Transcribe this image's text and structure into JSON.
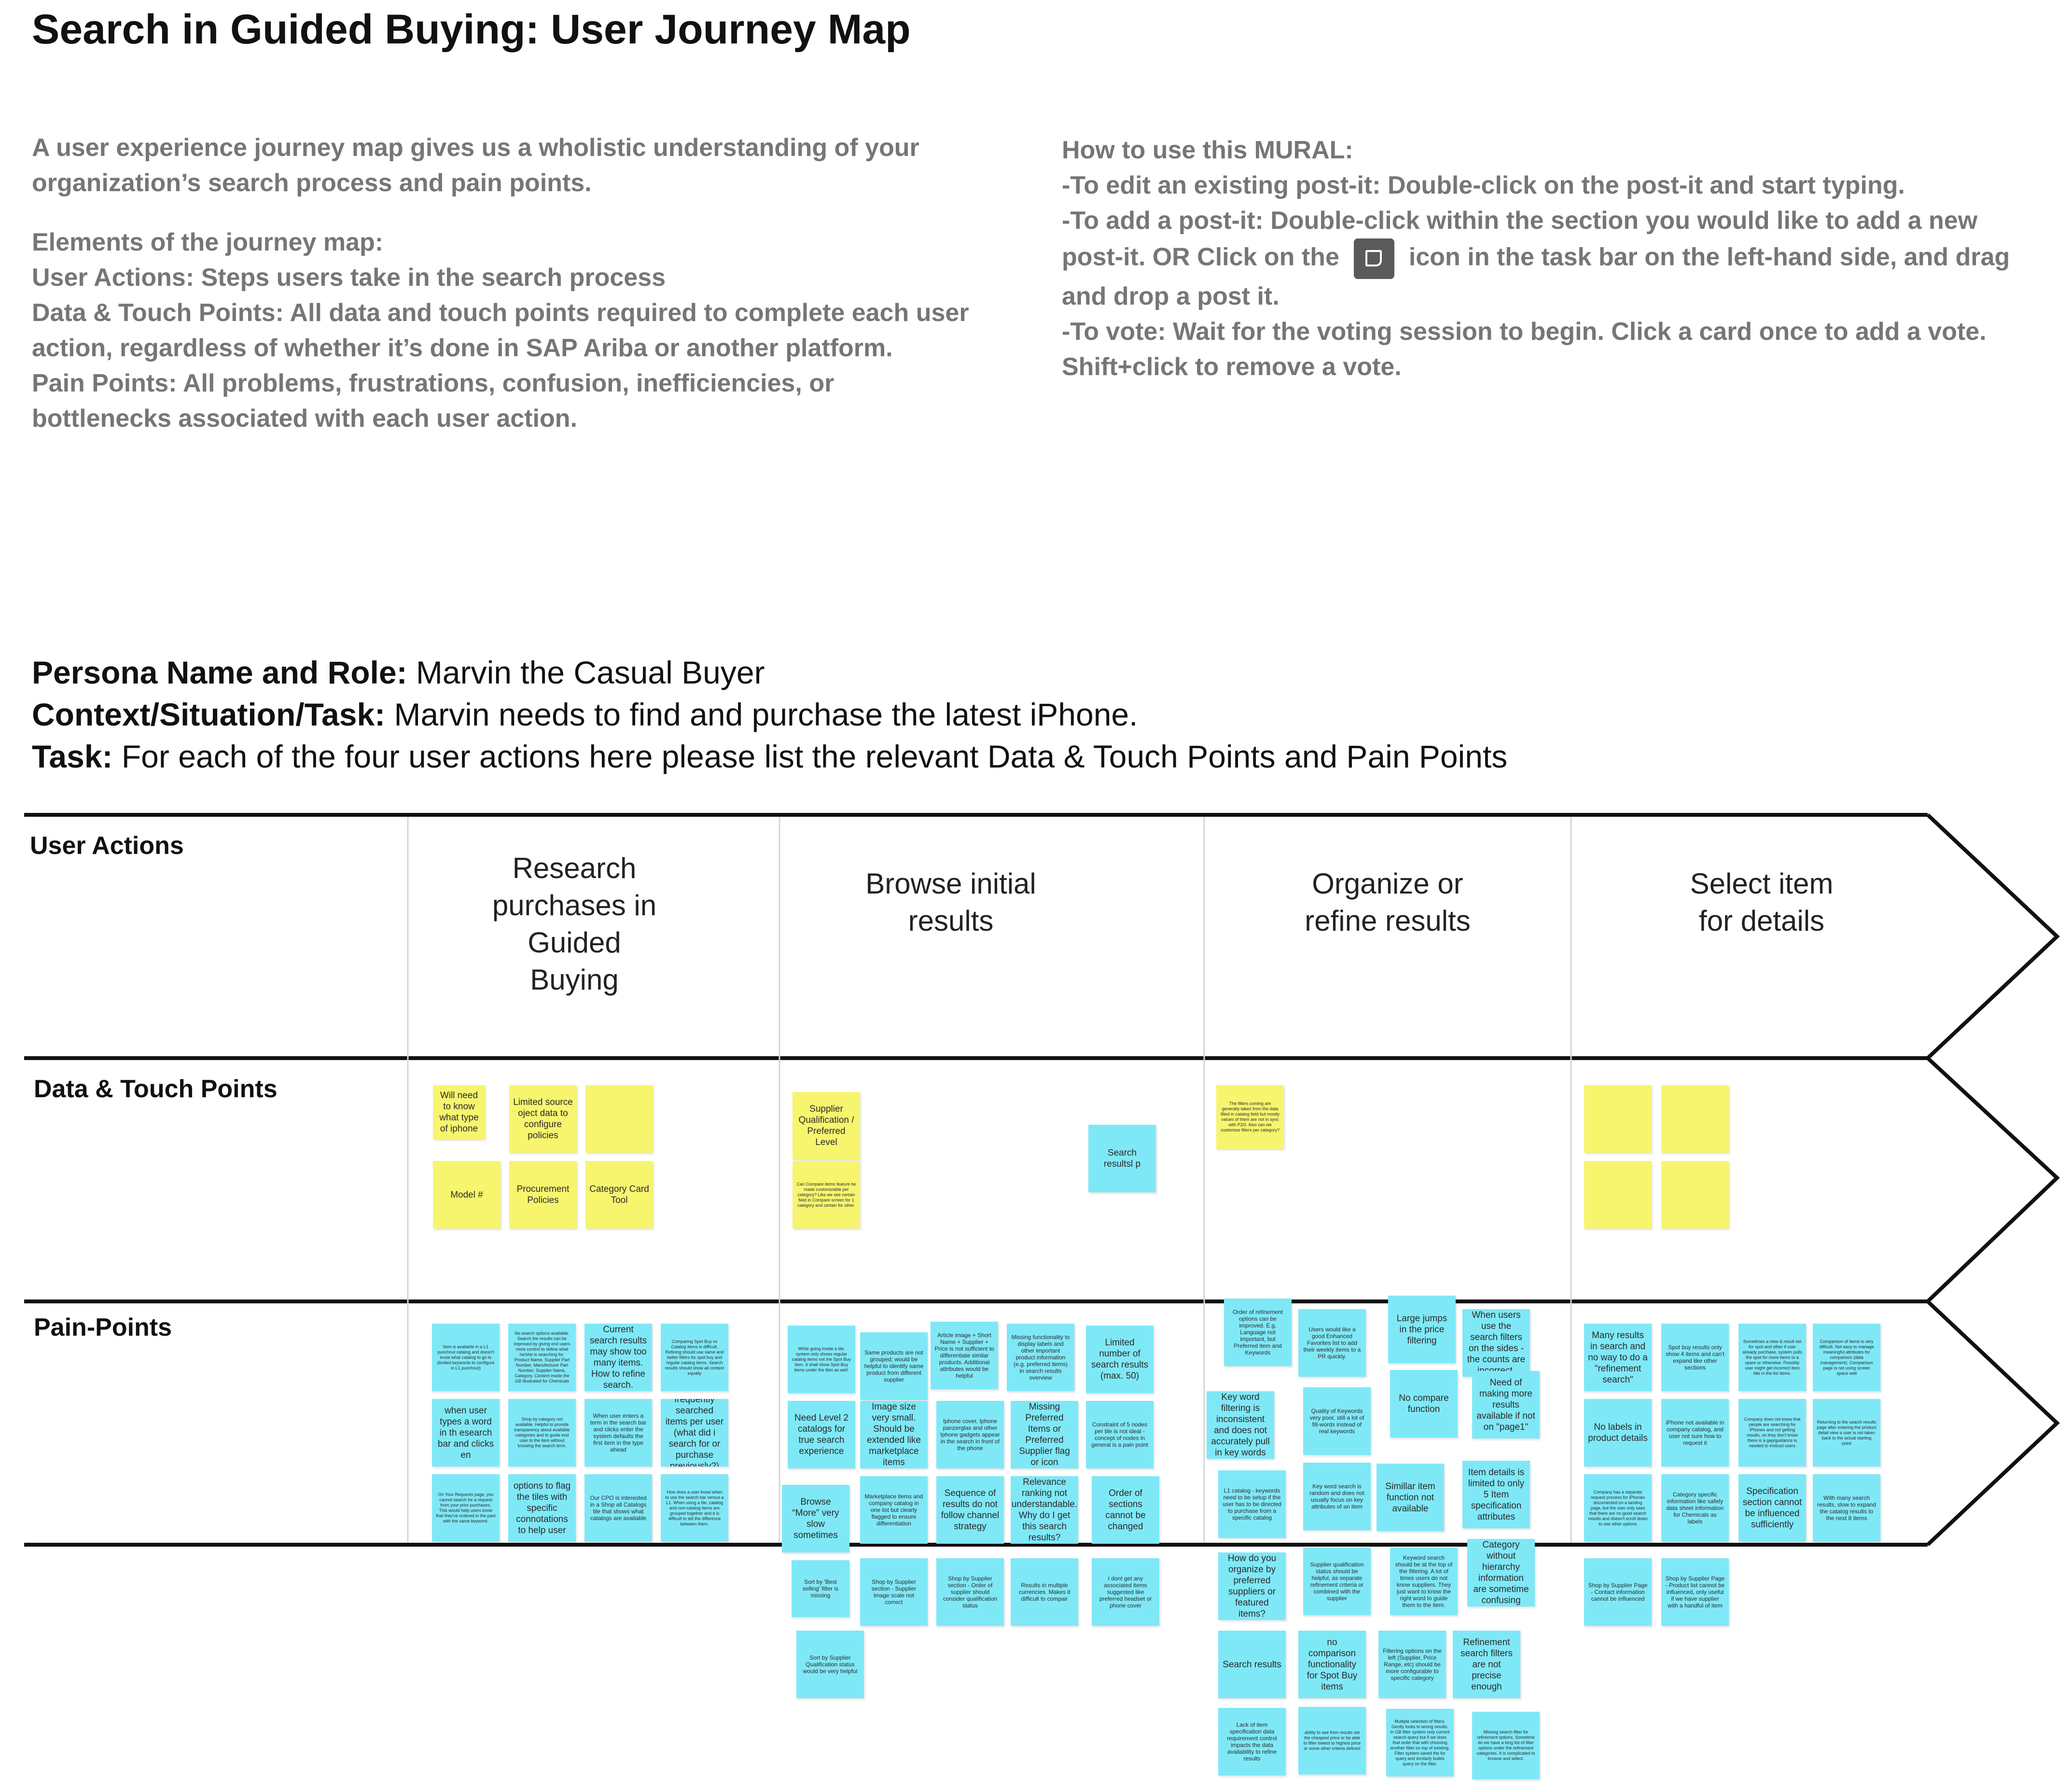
{
  "title": "Search in Guided Buying: User Journey Map",
  "intro": {
    "left": [
      "A user experience journey map gives us a wholistic understanding of your organization’s search process and pain points.",
      "Elements of the journey map:",
      "User Actions: Steps users take in the search process",
      "Data & Touch Points: All data and touch points required to complete each user action, regardless of whether it’s done in SAP Ariba or another platform.",
      "Pain Points: All problems, frustrations, confusion, inefficiencies, or bottlenecks  associated with each user action."
    ],
    "right": {
      "heading": "How to use this MURAL:",
      "edit": "-To edit an existing post-it: Double-click on the post-it and start typing.",
      "add_before_icon": "-To add a post-it: Double-click within the section you would like to add a new post-it. OR Click on the",
      "add_after_icon": "icon in the task bar on the left-hand side, and drag and drop a post it.",
      "vote": "-To vote: Wait for the voting session to begin. Click a card once to add a vote. Shift+click to remove a vote."
    },
    "icon": "sticky-note-icon"
  },
  "persona": {
    "name_label": "Persona Name and Role:",
    "name_value": " Marvin the Casual Buyer",
    "context_label": "Context/Situation/Task:",
    "context_value": " Marvin needs to find and purchase the latest iPhone.",
    "task_label": "Task:",
    "task_value": "  For each of the four user actions here please list the relevant Data & Touch Points and Pain Points"
  },
  "rows": {
    "user_actions": "User Actions",
    "data_touch": "Data & Touch Points",
    "pain_points": "Pain-Points"
  },
  "actions": [
    "Research purchases in Guided Buying",
    "Browse initial results",
    "Organize or refine results",
    "Select item for details"
  ],
  "touch_notes": [
    {
      "t": "Will need to know what type of iphone",
      "c": "y"
    },
    {
      "t": "Limited source oject data to configure policies",
      "c": "y"
    },
    {
      "t": "",
      "c": "y"
    },
    {
      "t": "Model #",
      "c": "y"
    },
    {
      "t": "Procurement Policies",
      "c": "y"
    },
    {
      "t": "Category Card Tool",
      "c": "y"
    },
    {
      "t": "Supplier Qualification / Preferred Level",
      "c": "y"
    },
    {
      "t": "Can Compare items feature be made customizable per category? Like we see certain field in Compare screen for 1 category and certain for other.",
      "c": "y"
    },
    {
      "t": "Search resultsl p",
      "c": "b"
    },
    {
      "t": "The filters coming are generally taken from the data filled in catalog field but mostly values of them are not in sync with P2O. Also can we customize filters per category?",
      "c": "y"
    },
    {
      "t": "",
      "c": "y"
    },
    {
      "t": "",
      "c": "y"
    },
    {
      "t": "",
      "c": "y"
    },
    {
      "t": "",
      "c": "y"
    }
  ],
  "pain_notes": [
    {
      "t": "Item is available in a L1 punchout catalog and doesn't know what catalog to go to (limited keywords to configure in L1 punchout)"
    },
    {
      "t": "No search options available. Search the results can be improved by giving end users more control to define what he/she is searching for. Product Name, Supplier Part Number, Manufacturer Part Number, Supplier Name, Category. Content inside the GB Illustrated for Chemicals"
    },
    {
      "t": "Current search results may show too many items. How to refine search."
    },
    {
      "t": "Comparing Spot Buy vs Catalog items is difficult. Refining should use same and better filters for spot buy and regular catalog items. Search results should show all content equally"
    },
    {
      "t": "when user types a word in th esearch bar and clicks en"
    },
    {
      "t": "Shop by category not available. Helpful to provide transparency about available categories and to guide end user to the item without knowing the search term."
    },
    {
      "t": "When user enters a term in the search bar and clicks enter the system defaults the first item in the type ahead"
    },
    {
      "t": "frequently searched items per user (what did i search for or purchase previously?)"
    },
    {
      "t": "On Your Requests page, you cannot search for a request from your prior purchases. This would help users know that they've ordered in the past with the same keyword."
    },
    {
      "t": "options to flag the tiles with specific connotations to help user"
    },
    {
      "t": "Our CPO is interested in a Shop all Catalogs tile that shows what catalogs are available"
    },
    {
      "t": "How does a user know when to use the search bar versus a L1. When using a tile, catalog and non-catalog items are grouped together and it is difficult to tell the difference between them."
    },
    {
      "t": "While going inside a tile, system only shows regular catalog items not the Spot Buy item. It shall show Spot Buy items under the tiles as well."
    },
    {
      "t": "Same products are not grouped; would be helpful to identify same product from different supplier"
    },
    {
      "t": "Article image + Short Name + Supplier + Price is not sufficient to differentiate similar products. Additional attributes would be helpful"
    },
    {
      "t": "Missing functionality to display labels and other important product information (e.g. preferred items) in search results overview"
    },
    {
      "t": "Limited number of search results (max. 50)"
    },
    {
      "t": "Need Level 2 catalogs for true search experience"
    },
    {
      "t": "Image size very small. Should be extended like marketplace items"
    },
    {
      "t": "Iphone cover, Iphone panzerglas and other Iphone gadgets appear in the search in front of the phone"
    },
    {
      "t": "Missing Preferred Items or Preferred Supplier flag or icon"
    },
    {
      "t": "Constraint of 5 nodes per tile is not ideal - concept of nodes in general is a pain point"
    },
    {
      "t": "Browse “More” very slow sometimes"
    },
    {
      "t": "Marketplace items and company catalog in one list but clearly flagged to ensure differentiation"
    },
    {
      "t": "Sequence of results do not follow channel strategy"
    },
    {
      "t": "Relevance ranking not understandable. Why do I get this search results?"
    },
    {
      "t": "Order of sections cannot be changed"
    },
    {
      "t": "Sort by 'Best selling' filter is missing"
    },
    {
      "t": "Shop by Supplier section - Supplier image scale not correct"
    },
    {
      "t": "Shop by Supplier section - Order of supplier should consider qualification status"
    },
    {
      "t": "Results in multiple currencies. Makes it difficult to compair"
    },
    {
      "t": "I dont get any associated items suggested like preferred headset or phone cover"
    },
    {
      "t": "Sort by Supplier Qualification status would be very helpful"
    },
    {
      "t": "Order of refinement options can be improved. E.g. Language not important, but Preferred item and Keywords"
    },
    {
      "t": "Users would like a good Enhanced Favorites list to add their weekly items to a PR quickly."
    },
    {
      "t": "Large jumps in the price filtering"
    },
    {
      "t": "When users use the search filters on the sides - the counts are incorrect."
    },
    {
      "t": "Key word filtering is inconsistent and does not accurately pull in key words"
    },
    {
      "t": "Quality of Keywords very poor, still a lot of fill-words instead of real keywords"
    },
    {
      "t": "No compare function"
    },
    {
      "t": "Need of making more results available if not on \"page1\""
    },
    {
      "t": "L1 catalog - keywords need to be setup if the user has to be directed to purchase from a specific catalog"
    },
    {
      "t": "Key word search is random and does not usually focus on key attributes of an item"
    },
    {
      "t": "Simillar item function not available"
    },
    {
      "t": "Item details is limited to only 5 Item specification attributes"
    },
    {
      "t": "Category without hierarchy information are sometime confusing"
    },
    {
      "t": "How do you organize by preferred suppliers or featured items?"
    },
    {
      "t": "Supplier qualification status should be helpful, as separate refinement criteria or combined with the supplier"
    },
    {
      "t": "Keyword search should be at the top of the filtering. A lot of times users do not know suppliers. They just want to know the right word to guide them to the item."
    },
    {
      "t": "Search results"
    },
    {
      "t": "no comparison functionality for Spot Buy items"
    },
    {
      "t": "Filtering options on the left (Supplier, Price Range, etc) should be more configurable to specific category"
    },
    {
      "t": "Refinement search filters are not precise enough"
    },
    {
      "t": "Lack of item specification data requirement control impacts the data availability to refine results"
    },
    {
      "t": "ability to see from results set the cheapest price or be able to filter lowest to highest price or some other criteria defined"
    },
    {
      "t": "Multiple selection of filters. Gently looks to wrong results. In GB filter system only current search query but if we does that order that with choosing another filter on top of existing. Filter system saved the for query and similarly builds query on the filter."
    },
    {
      "t": "Missing search filter for refinement options. Sometime do we have a long list of filter options under the refinement categories. It is complicated to browse and select."
    },
    {
      "t": "Many results in search and no way to do a \"refinement search\""
    },
    {
      "t": "Spot buy results only show 4 items and can't expand like other sections"
    },
    {
      "t": "Sometimes a view & result set for spot and other if user already purchase, system pulls the spot for more items to a spare or otherwise. Possibly user might get incorrect item title in the list items."
    },
    {
      "t": "Comparison of items is very difficult. Not easy to manage meaningful attributes for comparison (data management). Comparison page is not using screen space well"
    },
    {
      "t": "No labels in product details"
    },
    {
      "t": "iPhone not available in company catalog, and user not sure how to request it"
    },
    {
      "t": "Company does not know that people are searching for iPhones and not getting results, so they don't know there is a gap/guidance is needed to instruct users"
    },
    {
      "t": "Returning to the search results page after entering the product detail view a user is not taken back to the actual starting point"
    },
    {
      "t": "Company has a separate request process for iPhones documented on a landing page, but the user only sees that there are no good search results and doesn't scroll down to see other options"
    },
    {
      "t": "Category specific information like safety data sheet information for Chemicals as labels"
    },
    {
      "t": "Specification section cannot be influenced sufficiently"
    },
    {
      "t": "With many search results, slow to expand the catalog results to the next 8 items"
    },
    {
      "t": "Shop by Supplier Page - Contact information cannot be influenced"
    },
    {
      "t": "Shop by Supplier Page - Product list cannot be influenced, only useful if we have supplier with a handful of item"
    }
  ]
}
